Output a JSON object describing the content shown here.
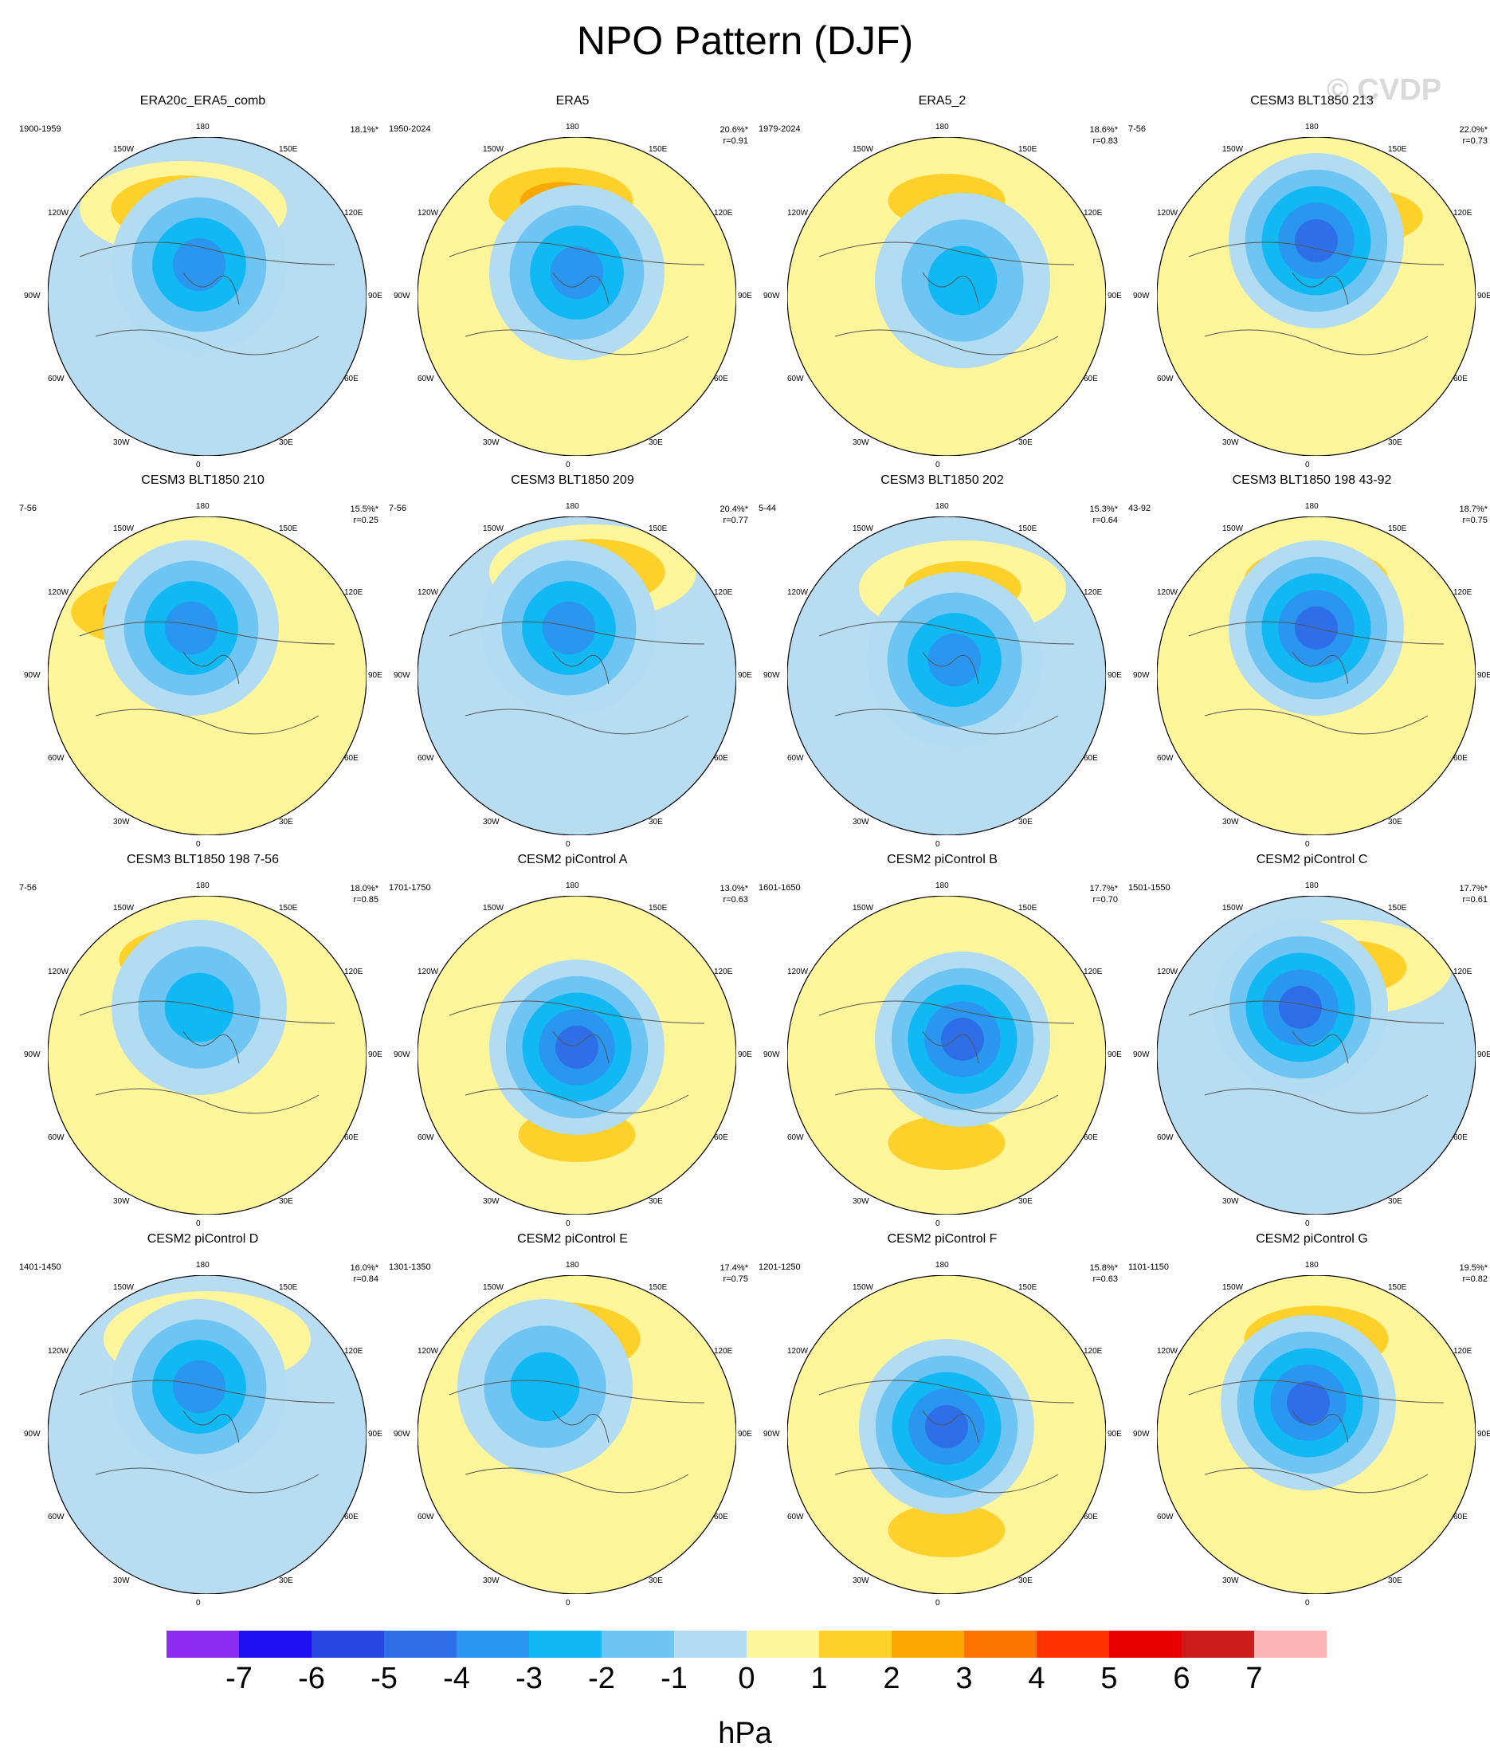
{
  "title": "NPO Pattern (DJF)",
  "watermark": "© CVDP",
  "unit": "hPa",
  "lon_labels": {
    "n": "180",
    "s": "0",
    "nw": "150W",
    "ne": "150E",
    "wnw": "120W",
    "ene": "120E",
    "w": "90W",
    "e": "90E",
    "wsw": "60W",
    "ese": "60E",
    "sw": "30W",
    "se": "30E"
  },
  "colorbar": {
    "colors": [
      "#8c2cf0",
      "#1e10f0",
      "#2846e0",
      "#2e6ee8",
      "#2a96f0",
      "#10b8f4",
      "#6ec4f2",
      "#b2dcf2",
      "#fff59a",
      "#fdd02a",
      "#fca800",
      "#fc7400",
      "#ff3200",
      "#e80000",
      "#cc1c1c",
      "#fcb4b4"
    ],
    "labels": [
      "-7",
      "-6",
      "-5",
      "-4",
      "-3",
      "-2",
      "-1",
      "0",
      "1",
      "2",
      "3",
      "4",
      "5",
      "6",
      "7"
    ]
  },
  "panels": [
    {
      "title": "ERA20c_ERA5_comb",
      "period": "1900-1959",
      "pct": "18.1%*",
      "r": "",
      "bg": "#b8ddf2",
      "pos": {
        "dx": -0.15,
        "dy": 0.55
      },
      "pos_amp": 2.2,
      "neg": {
        "dx": -0.05,
        "dy": 0.2
      },
      "neg_amp": -3.5
    },
    {
      "title": "ERA5",
      "period": "1950-2024",
      "pct": "20.6%*",
      "r": "r=0.91",
      "bg": "#fff59a",
      "pos": {
        "dx": -0.1,
        "dy": 0.6
      },
      "pos_amp": 2.8,
      "neg": {
        "dx": 0.0,
        "dy": 0.15
      },
      "neg_amp": -3.2
    },
    {
      "title": "ERA5_2",
      "period": "1979-2024",
      "pct": "18.6%*",
      "r": "r=0.83",
      "bg": "#fff59a",
      "pos": {
        "dx": 0.0,
        "dy": 0.6
      },
      "pos_amp": 2.0,
      "neg": {
        "dx": 0.1,
        "dy": 0.1
      },
      "neg_amp": -3.0
    },
    {
      "title": "CESM3 BLT1850 213",
      "period": "7-56",
      "pct": "22.0%*",
      "r": "r=0.73",
      "bg": "#fff59a",
      "pos": {
        "dx": 0.3,
        "dy": 0.5
      },
      "pos_amp": 1.8,
      "neg": {
        "dx": 0.0,
        "dy": 0.35
      },
      "neg_amp": -4.8
    },
    {
      "title": "CESM3 BLT1850 210",
      "period": "7-56",
      "pct": "15.5%*",
      "r": "r=0.25",
      "bg": "#fff59a",
      "pos": {
        "dx": -0.4,
        "dy": 0.4
      },
      "pos_amp": 2.8,
      "neg": {
        "dx": -0.1,
        "dy": 0.3
      },
      "neg_amp": -3.5
    },
    {
      "title": "CESM3 BLT1850 209",
      "period": "7-56",
      "pct": "20.4%*",
      "r": "r=0.77",
      "bg": "#b8ddf2",
      "pos": {
        "dx": 0.1,
        "dy": 0.65
      },
      "pos_amp": 2.2,
      "neg": {
        "dx": -0.05,
        "dy": 0.3
      },
      "neg_amp": -3.4
    },
    {
      "title": "CESM3 BLT1850 202",
      "period": "5-44",
      "pct": "15.3%*",
      "r": "r=0.64",
      "bg": "#b8ddf2",
      "pos": {
        "dx": 0.1,
        "dy": 0.55
      },
      "pos_amp": 1.8,
      "neg": {
        "dx": 0.05,
        "dy": 0.1
      },
      "neg_amp": -4.0
    },
    {
      "title": "CESM3 BLT1850 198 43-92",
      "period": "43-92",
      "pct": "18.7%*",
      "r": "r=0.75",
      "bg": "#fff59a",
      "pos": {
        "dx": 0.0,
        "dy": 0.6
      },
      "pos_amp": 2.2,
      "neg": {
        "dx": 0.0,
        "dy": 0.3
      },
      "neg_amp": -4.2
    },
    {
      "title": "CESM3 BLT1850 198 7-56",
      "period": "7-56",
      "pct": "18.0%*",
      "r": "r=0.85",
      "bg": "#fff59a",
      "pos": {
        "dx": -0.1,
        "dy": 0.6
      },
      "pos_amp": 2.8,
      "neg": {
        "dx": -0.05,
        "dy": 0.3
      },
      "neg_amp": -3.0
    },
    {
      "title": "CESM2 piControl A",
      "period": "1701-1750",
      "pct": "13.0%*",
      "r": "r=0.63",
      "bg": "#fff59a",
      "pos": {
        "dx": 0.0,
        "dy": -0.5
      },
      "pos_amp": 2.0,
      "neg": {
        "dx": 0.0,
        "dy": 0.05
      },
      "neg_amp": -4.6
    },
    {
      "title": "CESM2 piControl B",
      "period": "1601-1650",
      "pct": "17.7%*",
      "r": "r=0.70",
      "bg": "#fff59a",
      "pos": {
        "dx": 0.0,
        "dy": -0.55
      },
      "pos_amp": 1.8,
      "neg": {
        "dx": 0.1,
        "dy": 0.1
      },
      "neg_amp": -5.0
    },
    {
      "title": "CESM2 piControl C",
      "period": "1501-1550",
      "pct": "17.7%*",
      "r": "r=0.61",
      "bg": "#b8ddf2",
      "pos": {
        "dx": 0.2,
        "dy": 0.55
      },
      "pos_amp": 2.0,
      "neg": {
        "dx": -0.1,
        "dy": 0.3
      },
      "neg_amp": -4.2
    },
    {
      "title": "CESM2 piControl D",
      "period": "1401-1450",
      "pct": "16.0%*",
      "r": "r=0.84",
      "bg": "#b8ddf2",
      "pos": {
        "dx": 0.0,
        "dy": 0.6
      },
      "pos_amp": 1.8,
      "neg": {
        "dx": -0.05,
        "dy": 0.3
      },
      "neg_amp": -3.2
    },
    {
      "title": "CESM2 piControl E",
      "period": "1301-1350",
      "pct": "17.4%*",
      "r": "r=0.75",
      "bg": "#fff59a",
      "pos": {
        "dx": -0.1,
        "dy": 0.6
      },
      "pos_amp": 3.5,
      "neg": {
        "dx": -0.2,
        "dy": 0.3
      },
      "neg_amp": -2.8
    },
    {
      "title": "CESM2 piControl F",
      "period": "1201-1250",
      "pct": "15.8%*",
      "r": "r=0.63",
      "bg": "#fff59a",
      "pos": {
        "dx": 0.0,
        "dy": -0.6
      },
      "pos_amp": 1.8,
      "neg": {
        "dx": 0.0,
        "dy": 0.05
      },
      "neg_amp": -4.8
    },
    {
      "title": "CESM2 piControl G",
      "period": "1101-1150",
      "pct": "19.5%*",
      "r": "r=0.82",
      "bg": "#fff59a",
      "pos": {
        "dx": 0.0,
        "dy": 0.6
      },
      "pos_amp": 2.2,
      "neg": {
        "dx": -0.05,
        "dy": 0.2
      },
      "neg_amp": -4.4
    }
  ]
}
